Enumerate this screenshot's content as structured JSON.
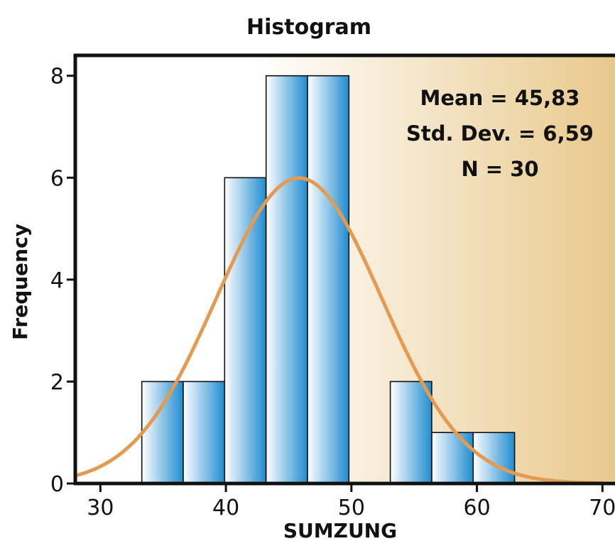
{
  "chart_data": {
    "type": "bar",
    "title": "Histogram",
    "xlabel": "SUMZUNG",
    "ylabel": "Frequency",
    "xlim": [
      28,
      71
    ],
    "ylim": [
      0,
      8.4
    ],
    "x_ticks": [
      30,
      40,
      50,
      60,
      70
    ],
    "y_ticks": [
      0,
      2,
      4,
      6,
      8
    ],
    "bins": [
      {
        "start": 33.3,
        "end": 36.6,
        "count": 2
      },
      {
        "start": 36.6,
        "end": 39.9,
        "count": 2
      },
      {
        "start": 39.9,
        "end": 43.2,
        "count": 6
      },
      {
        "start": 43.2,
        "end": 46.5,
        "count": 8
      },
      {
        "start": 46.5,
        "end": 49.8,
        "count": 8
      },
      {
        "start": 49.8,
        "end": 53.1,
        "count": 0
      },
      {
        "start": 53.1,
        "end": 56.4,
        "count": 2
      },
      {
        "start": 56.4,
        "end": 59.7,
        "count": 1
      },
      {
        "start": 59.7,
        "end": 63.0,
        "count": 1
      }
    ],
    "normal_curve": {
      "mean": 45.83,
      "std": 6.59,
      "n": 30,
      "bin_width": 3.3,
      "color": "#e59a52"
    },
    "stats": [
      "Mean = 45,83",
      "Std. Dev. = 6,59",
      "N = 30"
    ],
    "bar_colors": {
      "light": "#ffffff",
      "dark": "#1f8dd0",
      "outline": "#111111"
    },
    "background_gradient": [
      "#ffffff",
      "#e8c98c"
    ],
    "grid": false
  }
}
